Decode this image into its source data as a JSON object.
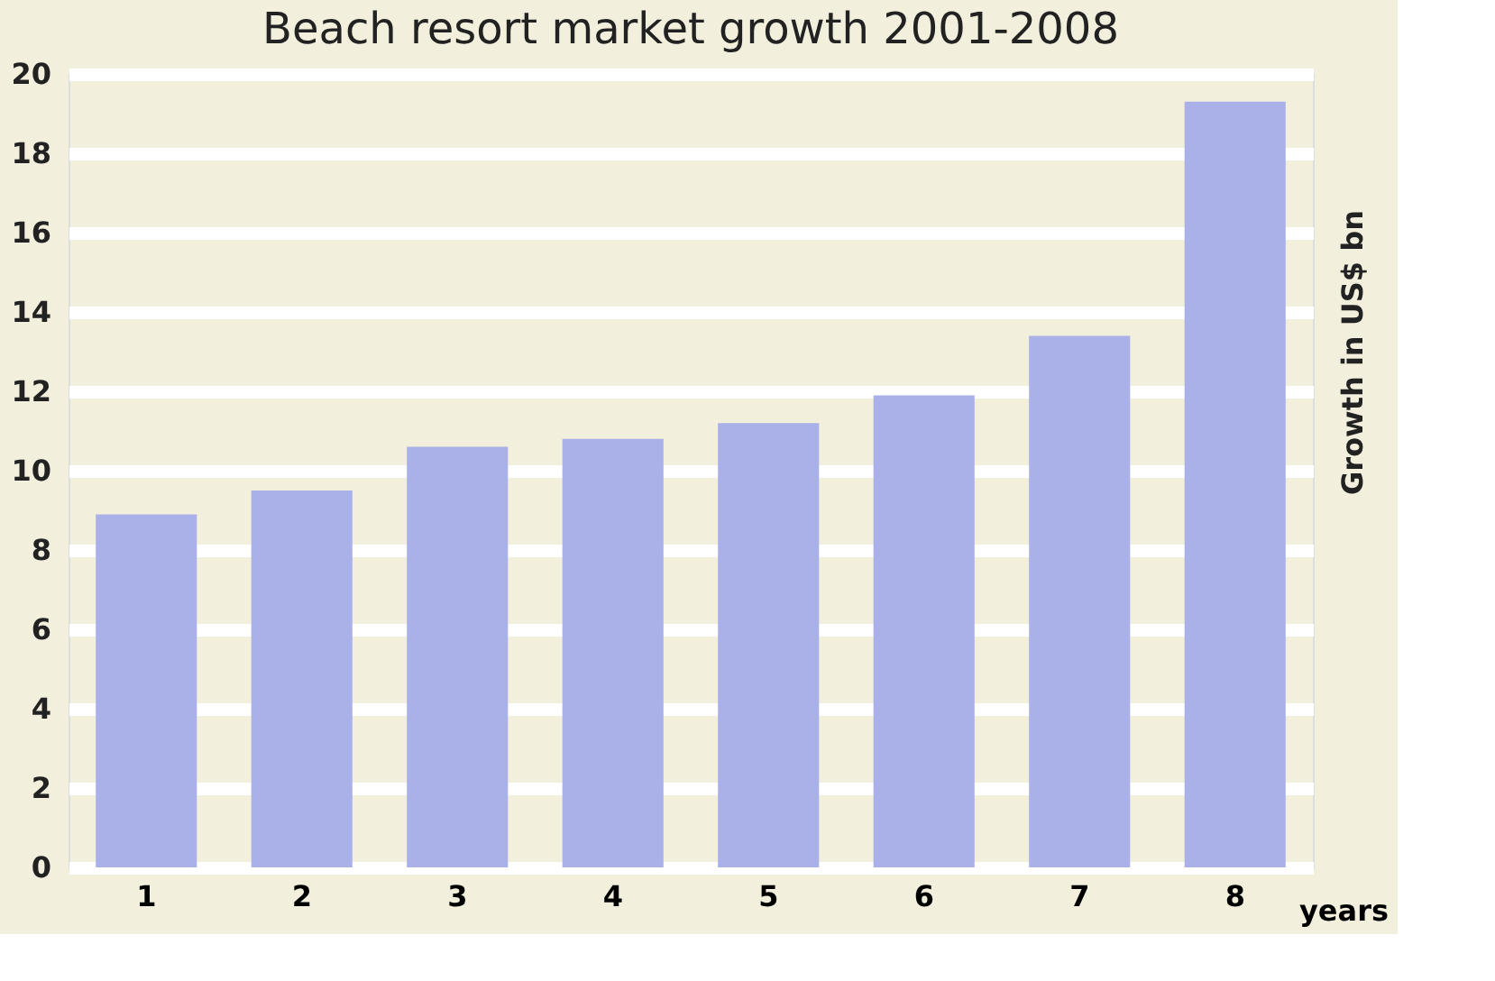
{
  "chart_data": {
    "type": "bar",
    "title": "Beach resort market growth 2001-2008",
    "xlabel": "years",
    "ylabel": "Growth in US$ bn",
    "categories": [
      "1",
      "2",
      "3",
      "4",
      "5",
      "6",
      "7",
      "8"
    ],
    "values": [
      8.9,
      9.5,
      10.6,
      10.8,
      11.2,
      11.9,
      13.4,
      19.3
    ],
    "color": "#aab0e8",
    "ylim": [
      0,
      20
    ],
    "yticks": [
      0,
      2,
      4,
      6,
      8,
      10,
      12,
      14,
      16,
      18,
      20
    ],
    "grid": "y"
  }
}
